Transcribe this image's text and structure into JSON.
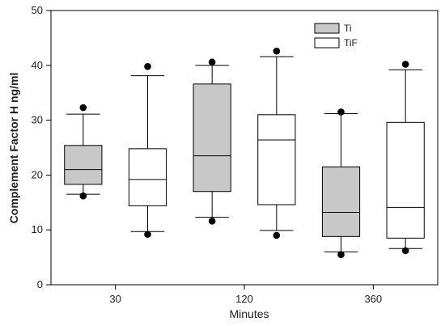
{
  "chart_data": {
    "type": "box",
    "xlabel": "Minutes",
    "ylabel": "Complement Factor H ng/ml",
    "ylim": [
      0,
      50
    ],
    "yticks": [
      0,
      10,
      20,
      30,
      40,
      50
    ],
    "categories": [
      "30",
      "120",
      "360"
    ],
    "legend": {
      "placement": "top-right",
      "entries": [
        "Ti",
        "TiF"
      ]
    },
    "grid": false,
    "series": [
      {
        "name": "Ti",
        "color": "#c8c8c8",
        "boxes": [
          {
            "category": "30",
            "min": 16.5,
            "q1": 18.3,
            "median": 21.0,
            "q3": 25.4,
            "max": 31.1,
            "outliers": [
              32.3,
              16.2
            ]
          },
          {
            "category": "120",
            "min": 12.3,
            "q1": 17.0,
            "median": 23.5,
            "q3": 36.6,
            "max": 40.0,
            "outliers": [
              40.6,
              11.6
            ]
          },
          {
            "category": "360",
            "min": 6.0,
            "q1": 8.8,
            "median": 13.2,
            "q3": 21.5,
            "max": 31.2,
            "outliers": [
              31.5,
              5.5
            ]
          }
        ]
      },
      {
        "name": "TiF",
        "color": "#ffffff",
        "boxes": [
          {
            "category": "30",
            "min": 9.7,
            "q1": 14.4,
            "median": 19.2,
            "q3": 24.8,
            "max": 38.1,
            "outliers": [
              39.8,
              9.2
            ]
          },
          {
            "category": "120",
            "min": 9.9,
            "q1": 14.6,
            "median": 26.4,
            "q3": 31.0,
            "max": 41.6,
            "outliers": [
              42.6,
              9.0
            ]
          },
          {
            "category": "360",
            "min": 6.6,
            "q1": 8.5,
            "median": 14.1,
            "q3": 29.6,
            "max": 39.2,
            "outliers": [
              40.2,
              6.2
            ]
          }
        ]
      }
    ]
  }
}
